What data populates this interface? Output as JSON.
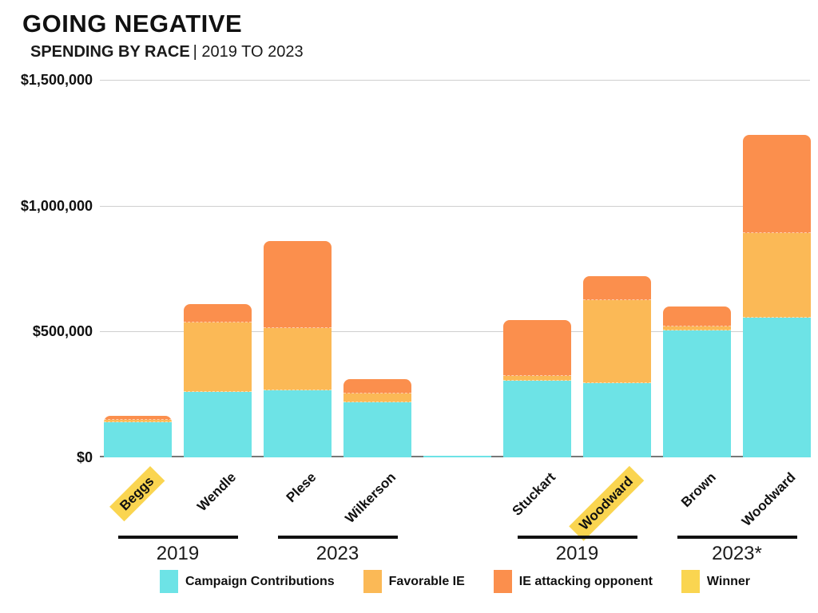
{
  "header": {
    "title": "GOING NEGATIVE",
    "subtitle_bold": "SPENDING BY RACE",
    "subtitle_rest": "| 2019 TO 2023"
  },
  "colors": {
    "campaign": "#6DE3E6",
    "favorable": "#FBB956",
    "attack": "#FB8F4D",
    "winner_highlight": "#FAD550",
    "gridline": "#CFCFCF",
    "axis_line": "#777777",
    "group_line": "#111111"
  },
  "y_axis": {
    "tick_labels": [
      "$1,500,000",
      "$1,000,000",
      "$500,000",
      "$0"
    ],
    "tick_values": [
      1500000,
      1000000,
      500000,
      0
    ]
  },
  "chart_data": {
    "type": "bar",
    "stacked": true,
    "title": "GOING NEGATIVE",
    "subtitle": "SPENDING BY RACE | 2019 TO 2023",
    "ylim": [
      0,
      1500000
    ],
    "grid": true,
    "legend_position": "bottom",
    "categories": [
      "Beggs",
      "Wendle",
      "Plese",
      "Wilkerson",
      "",
      "Stuckart",
      "Woodward",
      "Brown",
      "Woodward"
    ],
    "winner_flags": [
      true,
      false,
      false,
      false,
      false,
      false,
      true,
      false,
      false
    ],
    "series": [
      {
        "name": "Campaign Contributions",
        "color": "#6DE3E6",
        "values": [
          140000,
          260000,
          265000,
          220000,
          5000,
          305000,
          295000,
          505000,
          555000
        ]
      },
      {
        "name": "Favorable IE",
        "color": "#FBB956",
        "values": [
          10000,
          275000,
          250000,
          35000,
          0,
          20000,
          330000,
          15000,
          335000
        ]
      },
      {
        "name": "IE attacking opponent",
        "color": "#FB8F4D",
        "values": [
          15000,
          75000,
          345000,
          55000,
          0,
          220000,
          95000,
          80000,
          390000
        ]
      }
    ],
    "groups": [
      {
        "label": "2019",
        "first_index": 0,
        "last_index": 1
      },
      {
        "label": "2023",
        "first_index": 2,
        "last_index": 3
      },
      {
        "label": "2019",
        "first_index": 5,
        "last_index": 6
      },
      {
        "label": "2023*",
        "first_index": 7,
        "last_index": 8
      }
    ]
  },
  "legend": {
    "items": [
      {
        "label": "Campaign Contributions",
        "color": "#6DE3E6"
      },
      {
        "label": "Favorable IE",
        "color": "#FBB956"
      },
      {
        "label": "IE attacking opponent",
        "color": "#FB8F4D"
      },
      {
        "label": "Winner",
        "color": "#FAD550"
      }
    ]
  }
}
